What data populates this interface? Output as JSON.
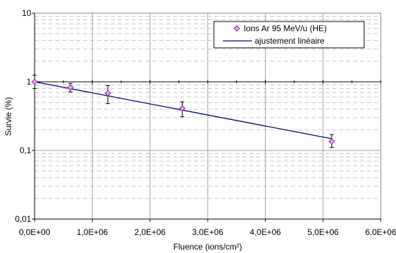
{
  "chart_data": {
    "type": "scatter",
    "title": "",
    "xlabel": "Fluence (ions/cm²)",
    "ylabel": "Survie (%)",
    "x_scale": "linear",
    "y_scale": "log",
    "xlim": [
      0,
      6000000
    ],
    "ylim": [
      0.01,
      10
    ],
    "x_ticks": [
      0,
      1000000,
      2000000,
      3000000,
      4000000,
      5000000,
      6000000
    ],
    "x_tick_labels": [
      "0,0E+00",
      "1,0E+06",
      "2,0E+06",
      "3,0E+06",
      "4,0E+06",
      "5,0E+06",
      "6,0E+06"
    ],
    "y_ticks": [
      0.01,
      0.1,
      1,
      10
    ],
    "y_tick_labels": [
      "0,01",
      "0,1",
      "1",
      "10"
    ],
    "grid": "on",
    "legend_position": "top-right",
    "series": [
      {
        "name": "Ions Ar 95 MeV/u (HE)",
        "kind": "points",
        "marker": "diamond",
        "color": "#e8a0e8",
        "x": [
          0,
          620000,
          1270000,
          2560000,
          5150000
        ],
        "y": [
          1.0,
          0.83,
          0.68,
          0.41,
          0.135
        ],
        "y_err_low": [
          0.2,
          0.12,
          0.2,
          0.1,
          0.025
        ],
        "y_err_high": [
          0.25,
          0.12,
          0.2,
          0.1,
          0.035
        ]
      },
      {
        "name": "ajustement linéaire",
        "kind": "line",
        "color": "#000080",
        "x": [
          0,
          5150000
        ],
        "y": [
          1.0,
          0.148
        ]
      }
    ]
  }
}
